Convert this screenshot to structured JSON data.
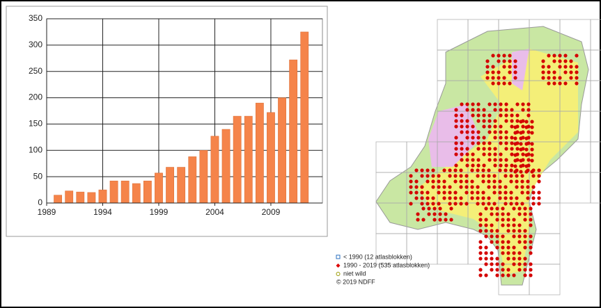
{
  "chart_data": {
    "type": "bar",
    "x": [
      1990,
      1991,
      1992,
      1993,
      1994,
      1995,
      1996,
      1997,
      1998,
      1999,
      2000,
      2001,
      2002,
      2003,
      2004,
      2005,
      2006,
      2007,
      2008,
      2009,
      2010,
      2011,
      2012
    ],
    "values": [
      15,
      23,
      21,
      20,
      25,
      42,
      42,
      37,
      42,
      57,
      68,
      68,
      88,
      100,
      127,
      140,
      165,
      165,
      190,
      172,
      200,
      272,
      325
    ],
    "color": "#f5844a",
    "xlim": [
      1989,
      2013.6
    ],
    "xticks": [
      1989,
      1994,
      1999,
      2004,
      2009
    ],
    "ylim": [
      0,
      350
    ],
    "yticks": [
      0,
      50,
      100,
      150,
      200,
      250,
      300,
      350
    ],
    "grid": true
  },
  "map": {
    "legend": [
      "< 1990  (12 atlasblokken)",
      "1990 - 2019 (535 atlasblokken)",
      "niet wild",
      "© 2019 NDFF"
    ]
  }
}
